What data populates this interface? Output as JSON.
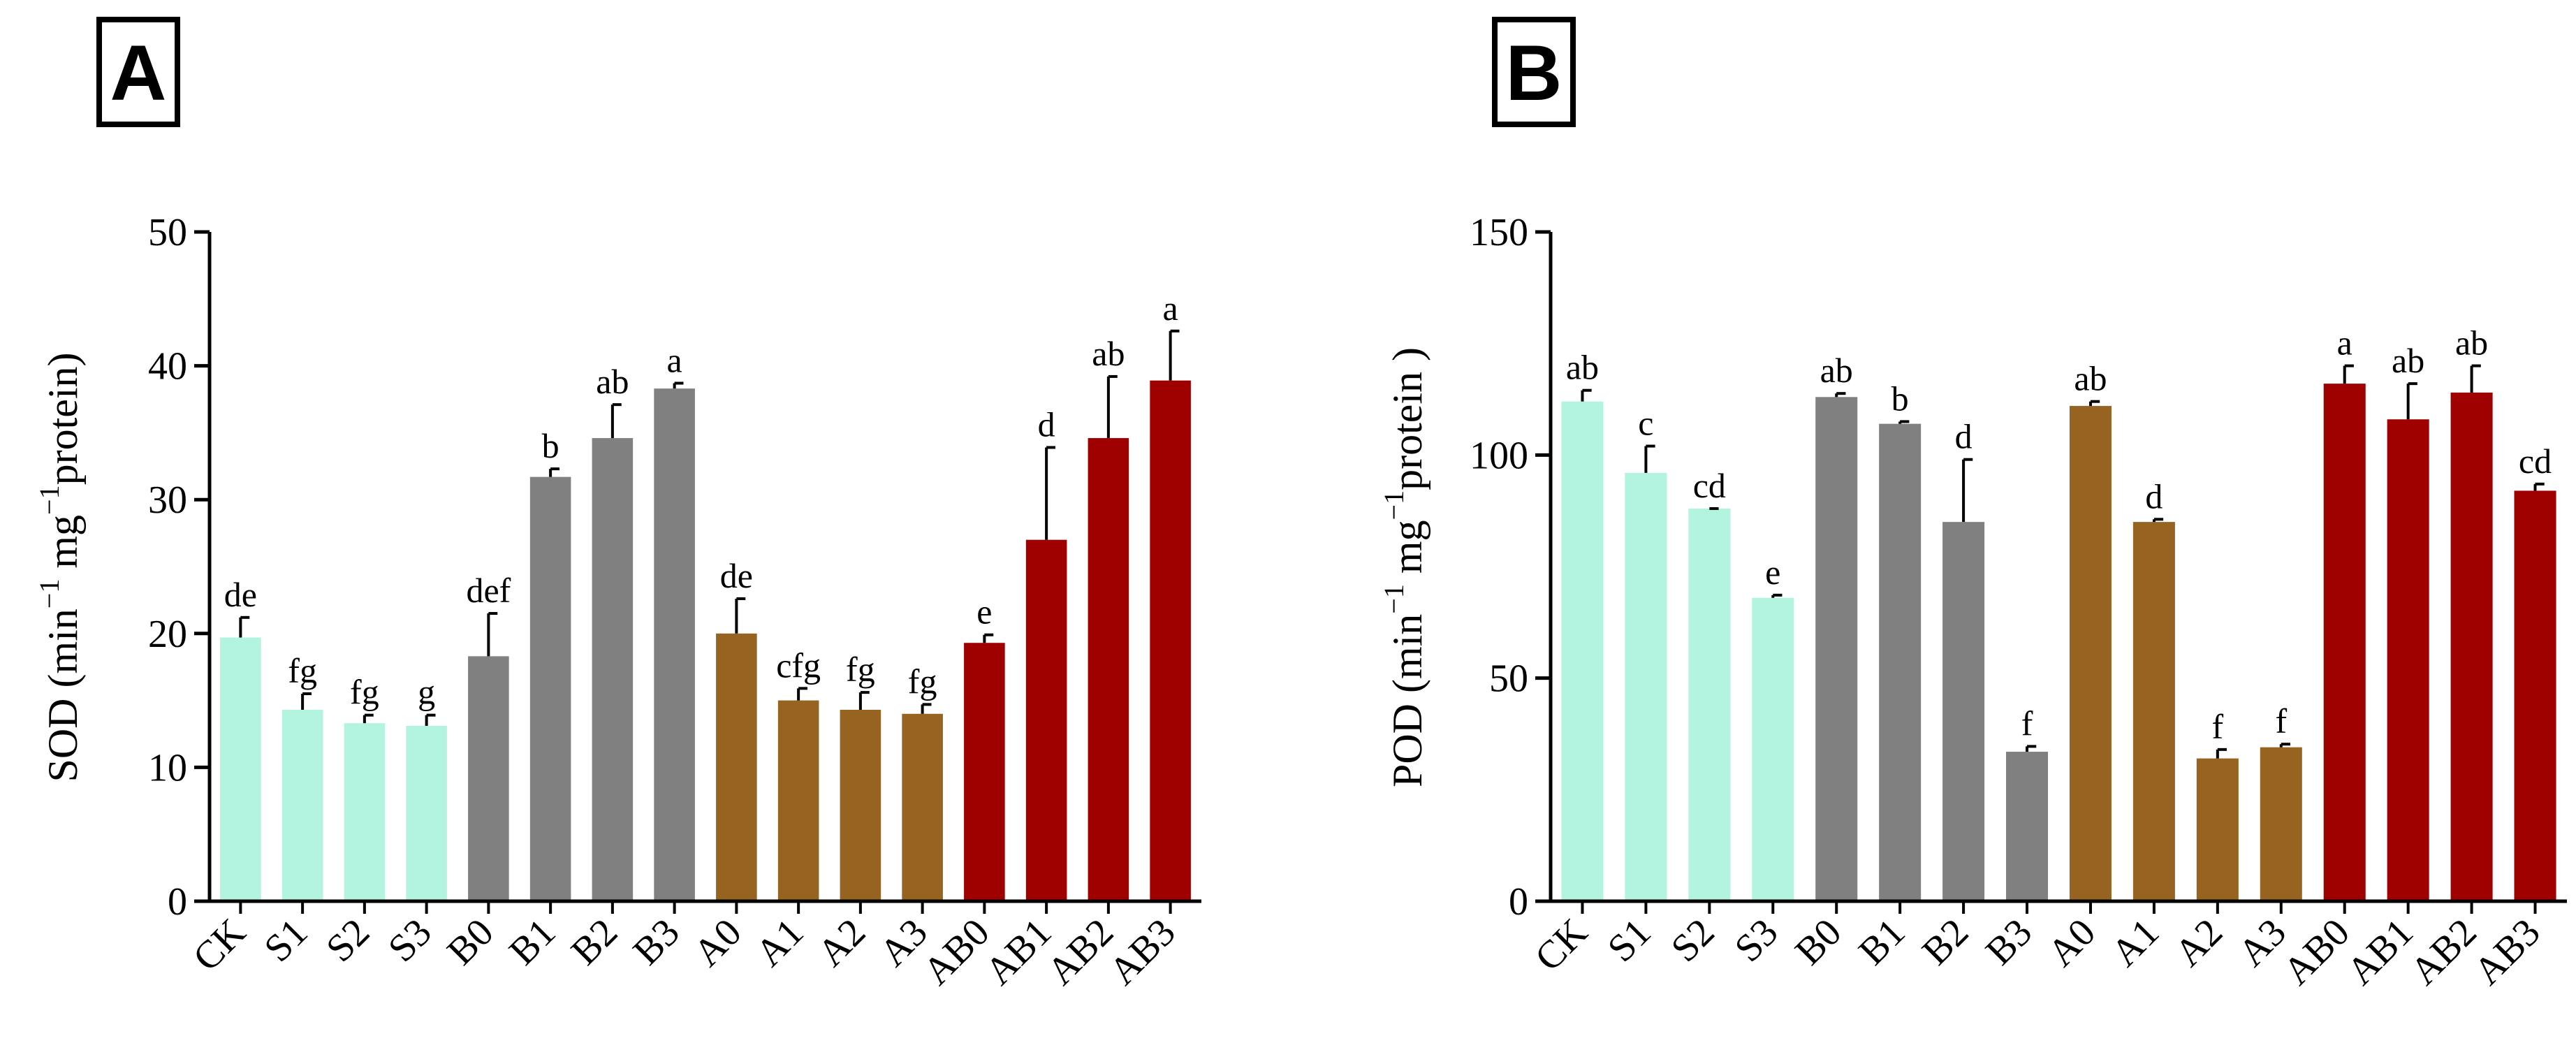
{
  "chart_data": [
    {
      "type": "bar",
      "panel_label": "A",
      "ylabel_base": "SOD",
      "ylabel_unit_a": "(min",
      "ylabel_sup_a": "−1",
      "ylabel_unit_b": " mg",
      "ylabel_sup_b": "−1",
      "ylabel_unit_c": "protein)",
      "ylim": [
        0,
        50
      ],
      "yticks": [
        0,
        10,
        20,
        30,
        40,
        50
      ],
      "categories": [
        "CK",
        "S1",
        "S2",
        "S3",
        "B0",
        "B1",
        "B2",
        "B3",
        "A0",
        "A1",
        "A2",
        "A3",
        "AB0",
        "AB1",
        "AB2",
        "AB3"
      ],
      "values": [
        19.7,
        14.3,
        13.3,
        13.1,
        18.3,
        31.7,
        34.6,
        38.3,
        20.0,
        15.0,
        14.3,
        14.0,
        19.3,
        27.0,
        34.6,
        38.9
      ],
      "errors": [
        1.5,
        1.2,
        0.6,
        0.8,
        3.2,
        0.6,
        2.5,
        0.4,
        2.6,
        0.9,
        1.3,
        0.7,
        0.6,
        6.9,
        4.6,
        3.7
      ],
      "letters": [
        "de",
        "fg",
        "fg",
        "g",
        "def",
        "b",
        "ab",
        "a",
        "de",
        "cfg",
        "fg",
        "fg",
        "e",
        "d",
        "ab",
        "a"
      ],
      "groups": [
        "cyan",
        "cyan",
        "cyan",
        "cyan",
        "gray",
        "gray",
        "gray",
        "gray",
        "brown",
        "brown",
        "brown",
        "brown",
        "red",
        "red",
        "red",
        "red"
      ]
    },
    {
      "type": "bar",
      "panel_label": "B",
      "ylabel_base": "POD",
      "ylabel_unit_a": "(min",
      "ylabel_sup_a": "−1",
      "ylabel_unit_b": " mg",
      "ylabel_sup_b": "−1",
      "ylabel_unit_c": "protein )",
      "ylim": [
        0,
        150
      ],
      "yticks": [
        0,
        50,
        100,
        150
      ],
      "categories": [
        "CK",
        "S1",
        "S2",
        "S3",
        "B0",
        "B1",
        "B2",
        "B3",
        "A0",
        "A1",
        "A2",
        "A3",
        "AB0",
        "AB1",
        "AB2",
        "AB3"
      ],
      "values": [
        112,
        96,
        88,
        68,
        113,
        107,
        85,
        33.5,
        111,
        85,
        32,
        34.5,
        116,
        108,
        114,
        92
      ],
      "errors": [
        2.5,
        6.0,
        0.0,
        0.6,
        0.8,
        0.5,
        14.0,
        1.2,
        1.0,
        0.6,
        2.0,
        0.7,
        4.0,
        8.0,
        6.0,
        1.5
      ],
      "letters": [
        "ab",
        "c",
        "cd",
        "e",
        "ab",
        "b",
        "d",
        "f",
        "ab",
        "d",
        "f",
        "f",
        "a",
        "ab",
        "ab",
        "cd"
      ],
      "groups": [
        "cyan",
        "cyan",
        "cyan",
        "cyan",
        "gray",
        "gray",
        "gray",
        "gray",
        "brown",
        "brown",
        "brown",
        "brown",
        "red",
        "red",
        "red",
        "red"
      ]
    }
  ],
  "colors": {
    "cyan": "#b2f4e0",
    "gray": "#808080",
    "brown": "#966321",
    "red": "#9f0000",
    "axis": "#000000"
  }
}
